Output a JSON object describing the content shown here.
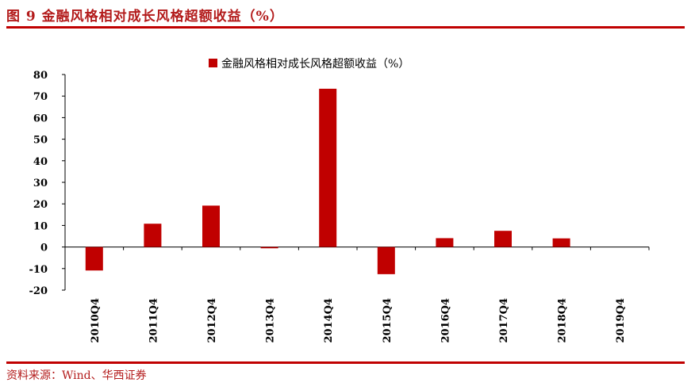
{
  "figure": {
    "title": "图 9  金融风格相对成长风格超额收益（%）",
    "source": "资料来源：Wind、华西证券"
  },
  "colors": {
    "bar": "#c00000",
    "rule": "#c00000",
    "title": "#b31b1b"
  },
  "chart_data": {
    "type": "bar",
    "title": "",
    "xlabel": "",
    "ylabel": "",
    "categories": [
      "2010Q4",
      "2011Q4",
      "2012Q4",
      "2013Q4",
      "2014Q4",
      "2015Q4",
      "2016Q4",
      "2017Q4",
      "2018Q4",
      "2019Q4"
    ],
    "series": [
      {
        "name": "金融风格相对成长风格超额收益（%）",
        "values": [
          -10.9,
          10.8,
          19.2,
          -0.6,
          73.4,
          -12.6,
          4.1,
          7.5,
          4.0,
          0
        ]
      }
    ],
    "ylim": [
      -20,
      80
    ],
    "yticks": [
      -20,
      -10,
      0,
      10,
      20,
      30,
      40,
      50,
      60,
      70,
      80
    ],
    "legend": "top-center",
    "grid": false
  }
}
